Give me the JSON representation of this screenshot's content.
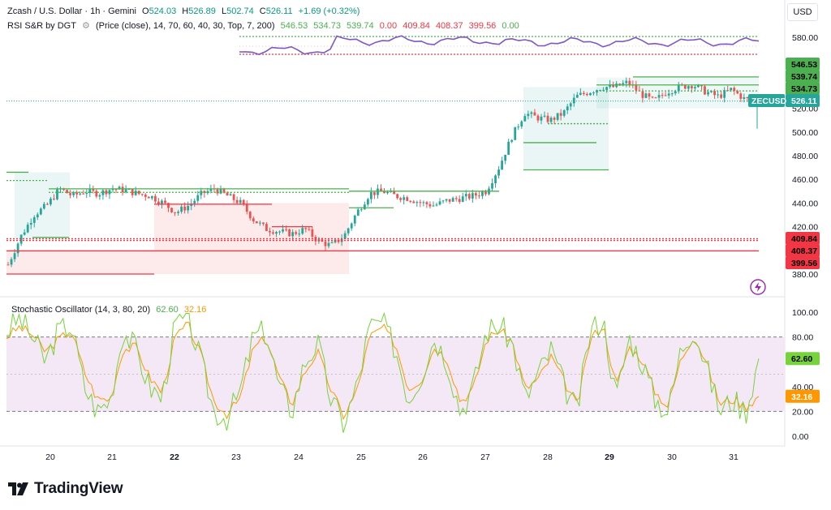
{
  "header": {
    "symbol_title": "Zcash / U.S. Dollar · 1h · Gemini",
    "open_label": "O",
    "open": "524.03",
    "high_label": "H",
    "high": "526.89",
    "low_label": "L",
    "low": "502.74",
    "close_label": "C",
    "close": "526.11",
    "change": "+1.69 (+0.32%)",
    "indicator_line": "RSI S&R by DGT",
    "indicator_params": "(Price (close), 14, 70, 60, 40, 30, Top, 7, 200)",
    "indicator_values": [
      "546.53",
      "534.73",
      "539.74",
      "0.00",
      "409.84",
      "408.37",
      "399.56",
      "0.00"
    ],
    "stoch_title": "Stochastic Oscillator (14, 3, 80, 20)",
    "stoch_k": "62.60",
    "stoch_d": "32.16"
  },
  "currency_button": "USD",
  "price_axis": [
    "580.00",
    "560.00",
    "540.00",
    "520.00",
    "500.00",
    "480.00",
    "460.00",
    "440.00",
    "420.00",
    "400.00",
    "380.00"
  ],
  "stoch_axis": [
    "100.00",
    "80.00",
    "60.00",
    "40.00",
    "20.00",
    "0.00"
  ],
  "time_axis": [
    "20",
    "21",
    "22",
    "23",
    "24",
    "25",
    "26",
    "27",
    "28",
    "29",
    "30",
    "31"
  ],
  "price_tags": {
    "r1": "546.53",
    "r2": "539.74",
    "r3": "534.73",
    "symbol": "ZECUSD",
    "last": "526.11",
    "s1": "409.84",
    "s2": "408.37",
    "s3": "399.56",
    "stoch_k": "62.60",
    "stoch_d": "32.16"
  },
  "colors": {
    "up": "#26a69a",
    "down": "#ef5350",
    "resistance": "#4caf50",
    "support": "#f23645",
    "rsi_line": "#7e57c2",
    "stoch_k": "#76d33b",
    "stoch_d": "#ff9800",
    "stoch_band": "#f3e5f5"
  },
  "brand": "TradingView",
  "chart_data": {
    "type": "candlestick",
    "symbol": "ZECUSD",
    "interval": "1h",
    "ylim": [
      370,
      590
    ],
    "days": [
      "20",
      "21",
      "22",
      "23",
      "24",
      "25",
      "26",
      "27",
      "28",
      "29",
      "30",
      "31"
    ],
    "close_path": [
      388,
      412,
      430,
      438,
      452,
      446,
      450,
      448,
      452,
      451,
      448,
      446,
      440,
      432,
      438,
      448,
      452,
      446,
      440,
      426,
      418,
      416,
      414,
      418,
      408,
      404,
      412,
      432,
      448,
      450,
      446,
      444,
      440,
      438,
      442,
      444,
      446,
      450,
      470,
      496,
      516,
      512,
      510,
      516,
      530,
      534,
      538,
      538,
      542,
      532,
      526,
      534,
      538,
      540,
      534,
      530,
      536,
      528,
      526
    ],
    "resistance_levels": [
      546.53,
      539.74,
      534.73
    ],
    "support_levels": [
      409.84,
      408.37,
      399.56
    ],
    "last_price": 526.11,
    "stochastic": {
      "k_last": 62.6,
      "d_last": 32.16,
      "upper_band": 80,
      "lower_band": 20,
      "k_path": [
        85,
        95,
        80,
        60,
        85,
        90,
        40,
        20,
        30,
        85,
        70,
        40,
        30,
        90,
        95,
        60,
        20,
        15,
        35,
        80,
        85,
        40,
        20,
        60,
        75,
        30,
        10,
        40,
        88,
        92,
        70,
        30,
        50,
        80,
        60,
        20,
        40,
        85,
        90,
        75,
        30,
        50,
        70,
        40,
        20,
        85,
        95,
        30,
        80,
        60,
        30,
        20,
        70,
        88,
        55,
        20,
        30,
        20,
        62.6
      ],
      "d_path": [
        80,
        88,
        82,
        68,
        78,
        85,
        52,
        30,
        30,
        70,
        72,
        48,
        35,
        80,
        90,
        65,
        28,
        18,
        30,
        70,
        80,
        48,
        26,
        52,
        68,
        38,
        16,
        36,
        80,
        88,
        74,
        38,
        46,
        72,
        62,
        28,
        38,
        78,
        86,
        76,
        38,
        46,
        64,
        44,
        24,
        78,
        90,
        40,
        72,
        62,
        36,
        24,
        62,
        82,
        58,
        26,
        30,
        24,
        32.16
      ]
    }
  }
}
